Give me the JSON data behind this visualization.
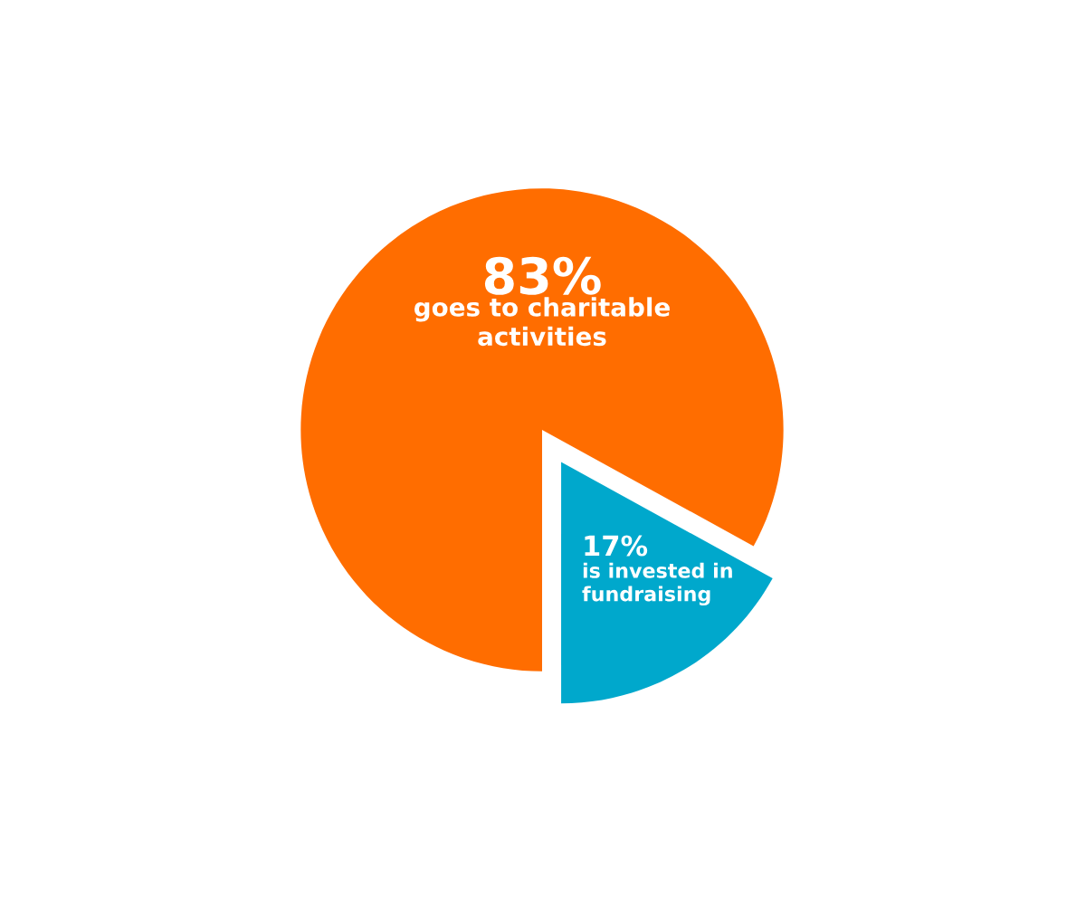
{
  "chart_data": {
    "type": "pie",
    "categories": [
      "goes to charitable\nactivities",
      "is invested in\nfundraising"
    ],
    "values": [
      83,
      17
    ],
    "colors": [
      "#ff6d00",
      "#00a8cc"
    ],
    "value_labels": [
      "83%",
      "17%"
    ]
  }
}
